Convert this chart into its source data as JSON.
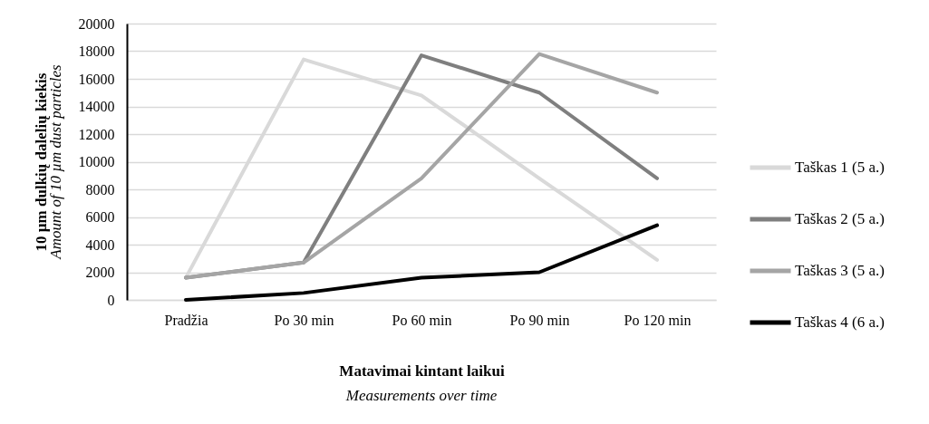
{
  "chart_data": {
    "type": "line",
    "xlabel": "Matavimai kintant laikui",
    "ylabel": "10 µm dulkių dalelių kiekis",
    "annotations": [
      "Amount of 10 µm dust particles",
      "Measurements over time"
    ],
    "categories": [
      "Pradžia",
      "Po 30 min",
      "Po 60 min",
      "Po 90 min",
      "Po 120 min"
    ],
    "series": [
      {
        "name": "Taškas 1 (5 a.)",
        "color": "#d9d9d9",
        "values": [
          1600,
          17400,
          14800,
          8800,
          2900
        ]
      },
      {
        "name": "Taškas 2 (5 a.)",
        "color": "#7f7f7f",
        "values": [
          1600,
          2700,
          17700,
          15000,
          8800
        ]
      },
      {
        "name": "Taškas 3 (5 a.)",
        "color": "#a5a5a5",
        "values": [
          1600,
          2700,
          8800,
          17800,
          15000
        ]
      },
      {
        "name": "Taškas 4 (6 a.)",
        "color": "#000000",
        "values": [
          0,
          500,
          1600,
          2000,
          5400
        ]
      }
    ],
    "ylim": [
      0,
      20000
    ],
    "yticks": [
      0,
      2000,
      4000,
      6000,
      8000,
      10000,
      12000,
      14000,
      16000,
      18000,
      20000
    ],
    "grid": "y",
    "legend": "right",
    "marker": "none",
    "line_style": "solid"
  }
}
